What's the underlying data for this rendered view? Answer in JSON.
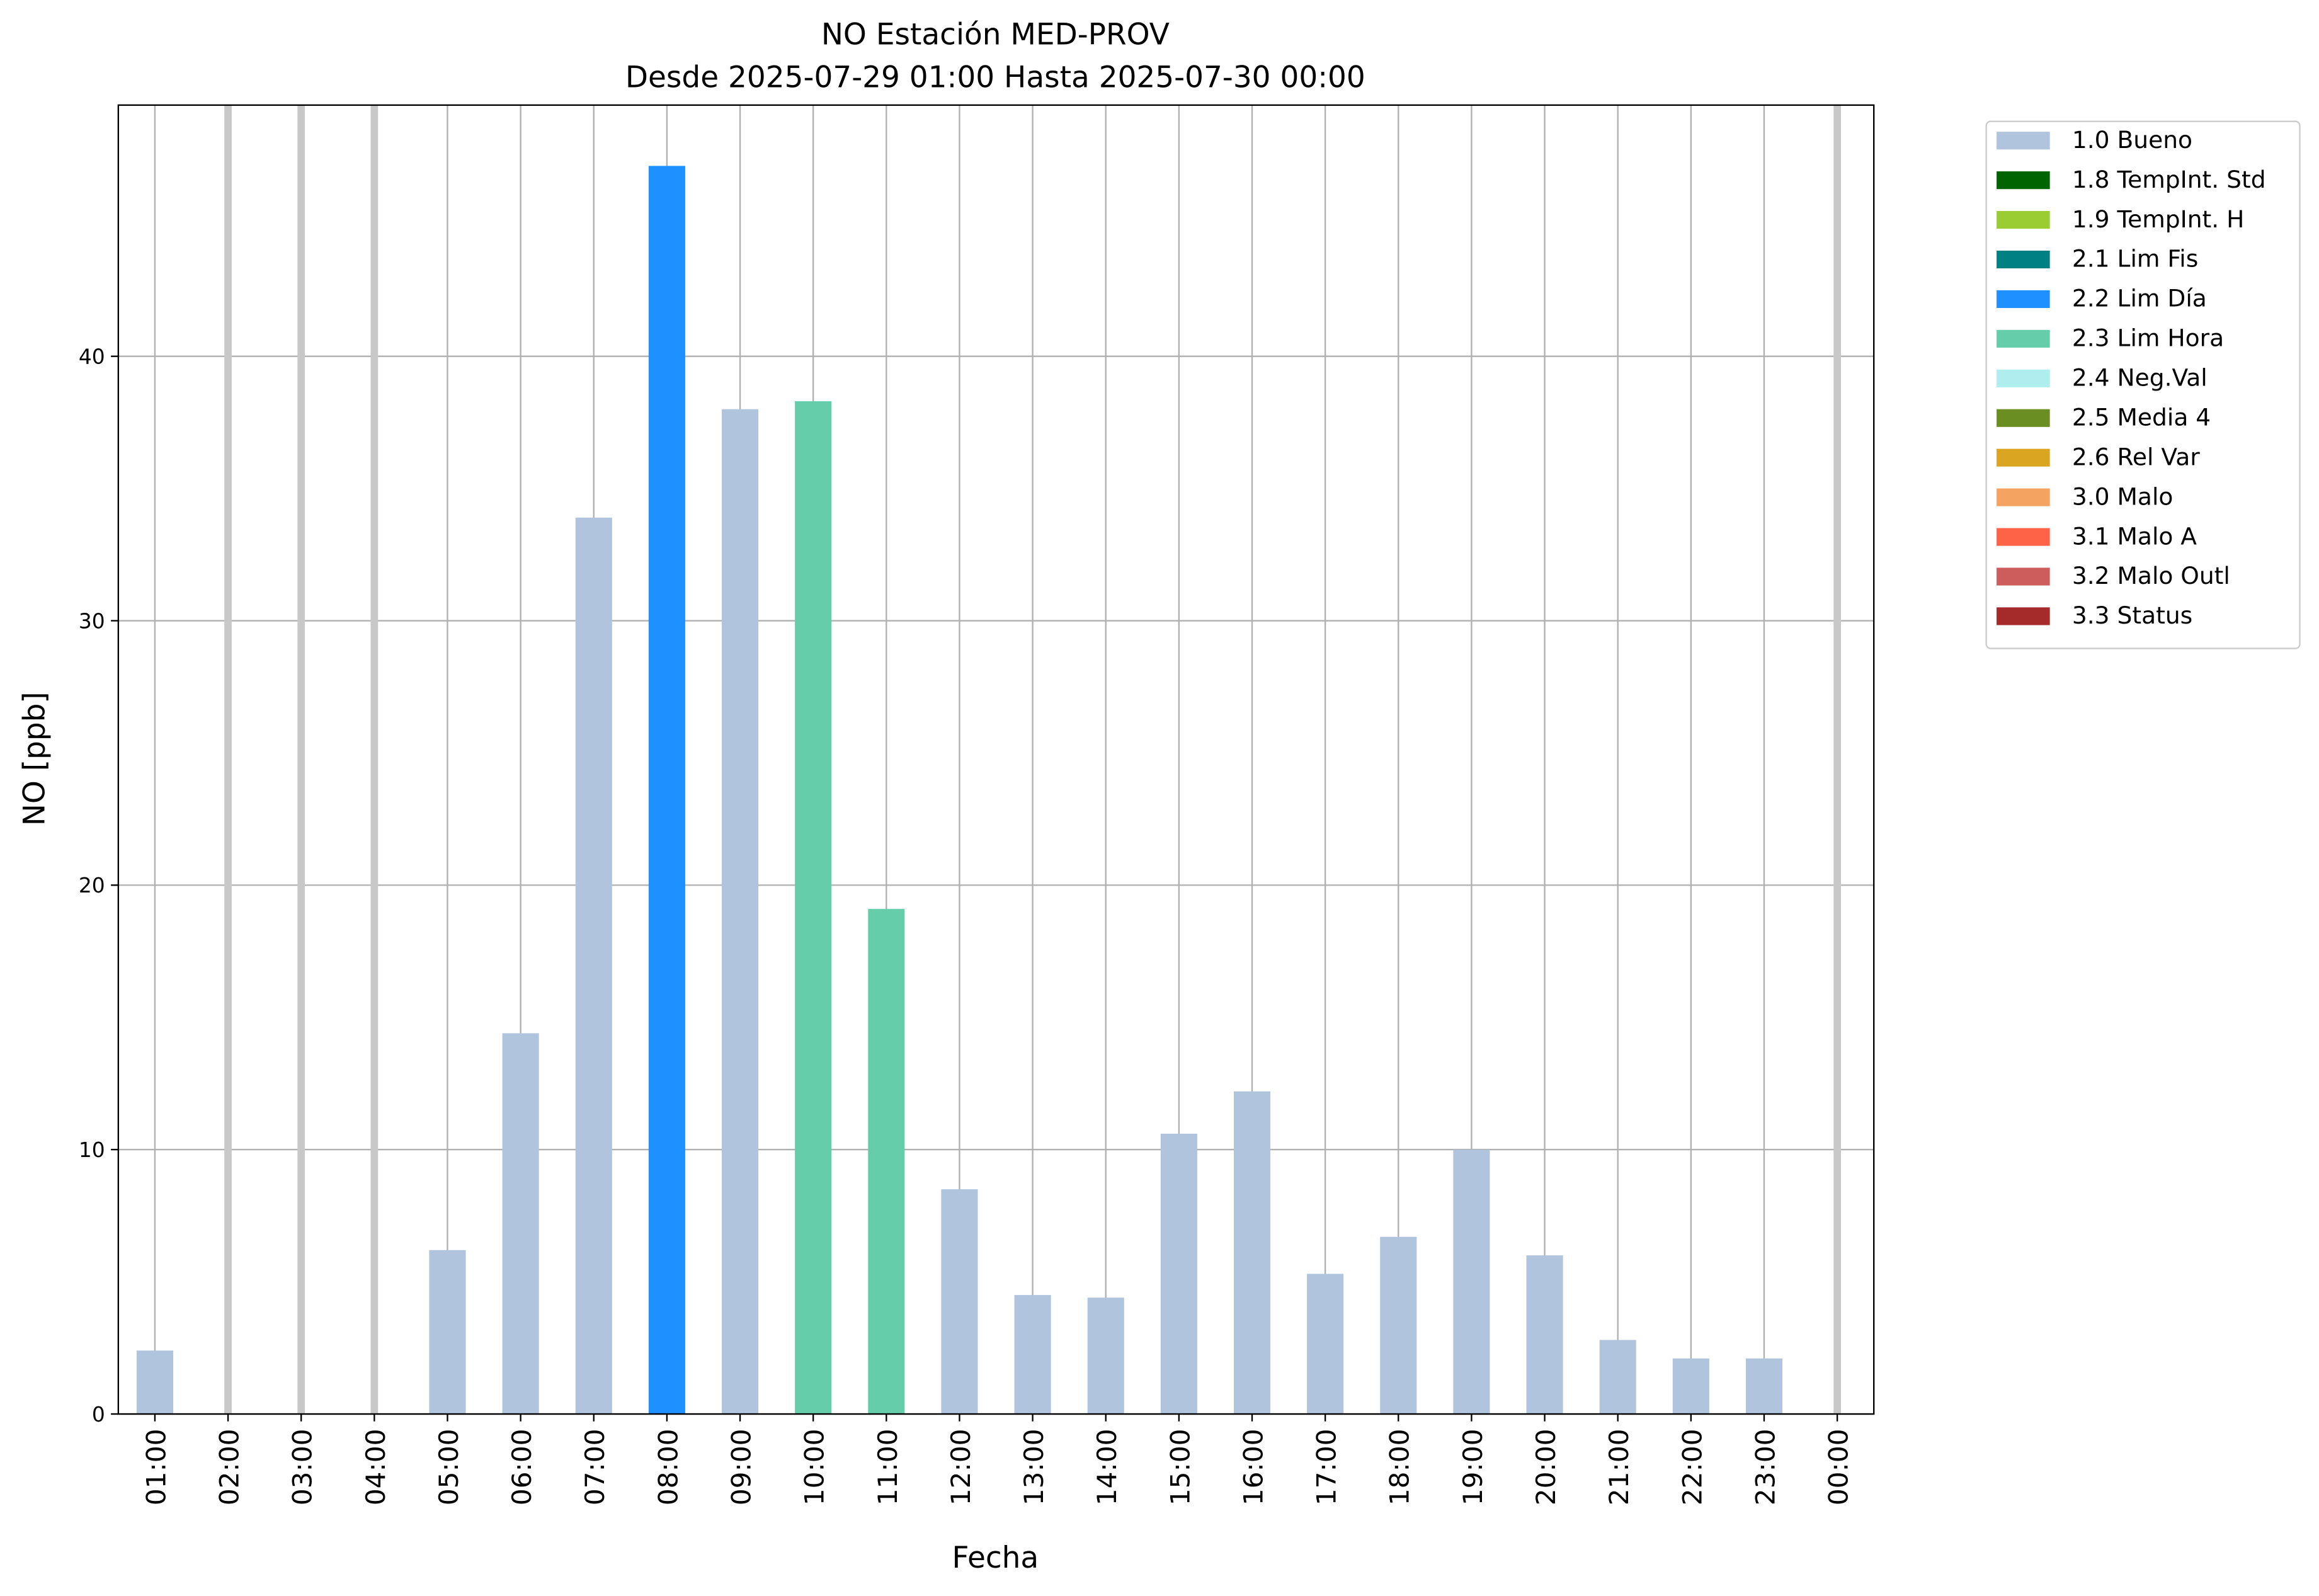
{
  "chart_data": {
    "type": "stacked_bar",
    "title": "NO Estación MED-PROV",
    "subtitle": "Desde 2025-07-29 01:00 Hasta 2025-07-30 00:00",
    "x_label": "Fecha",
    "y_label": "NO [ppb]",
    "categories": [
      "01:00",
      "02:00",
      "03:00",
      "04:00",
      "05:00",
      "06:00",
      "07:00",
      "08:00",
      "09:00",
      "10:00",
      "11:00",
      "12:00",
      "13:00",
      "14:00",
      "15:00",
      "16:00",
      "17:00",
      "18:00",
      "19:00",
      "20:00",
      "21:00",
      "22:00",
      "23:00",
      "00:00"
    ],
    "series": [
      {
        "name": "1.0 Bueno",
        "color": "#b0c4de",
        "values": [
          2.4,
          null,
          null,
          null,
          6.2,
          14.4,
          33.9,
          null,
          38.0,
          null,
          null,
          8.5,
          4.5,
          4.4,
          10.6,
          12.2,
          5.3,
          6.7,
          10.0,
          6.0,
          2.8,
          2.1,
          2.1,
          null
        ]
      },
      {
        "name": "1.8 TempInt. Std",
        "color": "#006400",
        "values": [
          null,
          null,
          null,
          null,
          null,
          null,
          null,
          null,
          null,
          null,
          null,
          null,
          null,
          null,
          null,
          null,
          null,
          null,
          null,
          null,
          null,
          null,
          null,
          null
        ]
      },
      {
        "name": "1.9 TempInt. H",
        "color": "#9acd32",
        "values": [
          null,
          null,
          null,
          null,
          null,
          null,
          null,
          null,
          null,
          null,
          null,
          null,
          null,
          null,
          null,
          null,
          null,
          null,
          null,
          null,
          null,
          null,
          null,
          null
        ]
      },
      {
        "name": "2.1 Lim Fis",
        "color": "#008080",
        "values": [
          null,
          null,
          null,
          null,
          null,
          null,
          null,
          null,
          null,
          null,
          null,
          null,
          null,
          null,
          null,
          null,
          null,
          null,
          null,
          null,
          null,
          null,
          null,
          null
        ]
      },
      {
        "name": "2.2 Lim Día",
        "color": "#1e90ff",
        "values": [
          null,
          null,
          null,
          null,
          null,
          null,
          null,
          47.2,
          null,
          null,
          null,
          null,
          null,
          null,
          null,
          null,
          null,
          null,
          null,
          null,
          null,
          null,
          null,
          null
        ]
      },
      {
        "name": "2.3 Lim Hora",
        "color": "#66cdaa",
        "values": [
          null,
          null,
          null,
          null,
          null,
          null,
          null,
          null,
          null,
          38.3,
          19.1,
          null,
          null,
          null,
          null,
          null,
          null,
          null,
          null,
          null,
          null,
          null,
          null,
          null
        ]
      },
      {
        "name": "2.4 Neg.Val",
        "color": "#afeeee",
        "values": [
          null,
          null,
          null,
          null,
          null,
          null,
          null,
          null,
          null,
          null,
          null,
          null,
          null,
          null,
          null,
          null,
          null,
          null,
          null,
          null,
          null,
          null,
          null,
          null
        ]
      },
      {
        "name": "2.5 Media 4",
        "color": "#6b8e23",
        "values": [
          null,
          null,
          null,
          null,
          null,
          null,
          null,
          null,
          null,
          null,
          null,
          null,
          null,
          null,
          null,
          null,
          null,
          null,
          null,
          null,
          null,
          null,
          null,
          null
        ]
      },
      {
        "name": "2.6 Rel Var",
        "color": "#daa520",
        "values": [
          null,
          null,
          null,
          null,
          null,
          null,
          null,
          null,
          null,
          null,
          null,
          null,
          null,
          null,
          null,
          null,
          null,
          null,
          null,
          null,
          null,
          null,
          null,
          null
        ]
      },
      {
        "name": "3.0 Malo",
        "color": "#f4a460",
        "values": [
          null,
          null,
          null,
          null,
          null,
          null,
          null,
          null,
          null,
          null,
          null,
          null,
          null,
          null,
          null,
          null,
          null,
          null,
          null,
          null,
          null,
          null,
          null,
          null
        ]
      },
      {
        "name": "3.1 Malo A",
        "color": "#ff6347",
        "values": [
          null,
          null,
          null,
          null,
          null,
          null,
          null,
          null,
          null,
          null,
          null,
          null,
          null,
          null,
          null,
          null,
          null,
          null,
          null,
          null,
          null,
          null,
          null,
          null
        ]
      },
      {
        "name": "3.2 Malo Outl",
        "color": "#cd5c5c",
        "values": [
          null,
          null,
          null,
          null,
          null,
          null,
          null,
          null,
          null,
          null,
          null,
          null,
          null,
          null,
          null,
          null,
          null,
          null,
          null,
          null,
          null,
          null,
          null,
          null
        ]
      },
      {
        "name": "3.3 Status",
        "color": "#a52a2a",
        "values": [
          null,
          null,
          null,
          null,
          null,
          null,
          null,
          null,
          null,
          null,
          null,
          null,
          null,
          null,
          null,
          null,
          null,
          null,
          null,
          null,
          null,
          null,
          null,
          null
        ]
      }
    ],
    "ylim": [
      0,
      49.5
    ],
    "yticks": [
      0,
      10,
      20,
      30,
      40
    ],
    "grid": true,
    "legend": "outside-upper-right"
  }
}
